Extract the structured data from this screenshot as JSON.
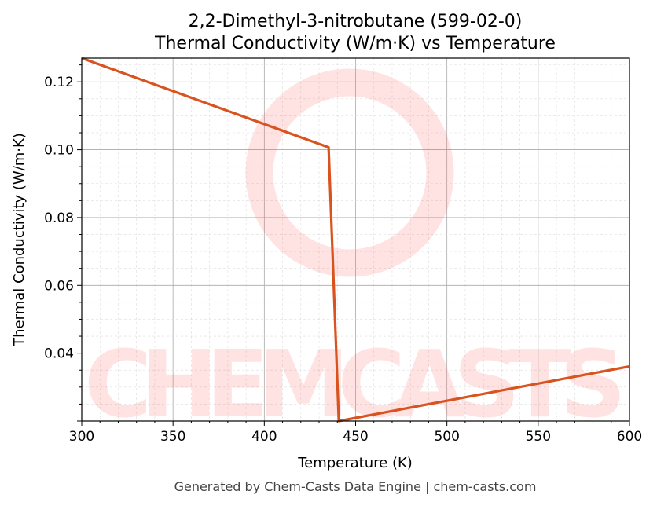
{
  "chart_data": {
    "type": "line",
    "title": "2,2-Dimethyl-3-nitrobutane (599-02-0)",
    "subtitle": "Thermal Conductivity (W/m·K) vs Temperature",
    "xlabel": "Temperature (K)",
    "ylabel": "Thermal Conductivity (W/m·K)",
    "xlim": [
      300,
      600
    ],
    "ylim": [
      0.02,
      0.127
    ],
    "xticks": [
      "300",
      "350",
      "400",
      "450",
      "500",
      "550",
      "600"
    ],
    "yticks": [
      "0.04",
      "0.06",
      "0.08",
      "0.10",
      "0.12"
    ],
    "grid": true,
    "series": [
      {
        "color": "#d9531e",
        "x": [
          300,
          435.2,
          440.8,
          600
        ],
        "y": [
          0.127,
          0.1007,
          0.02,
          0.0361
        ]
      }
    ],
    "watermark": "CHEMCASTS",
    "footer": "Generated by Chem-Casts Data Engine | chem-casts.com"
  }
}
